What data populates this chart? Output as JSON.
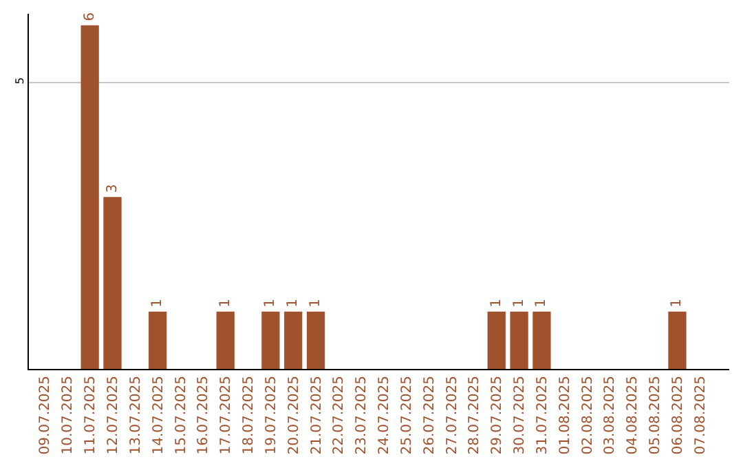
{
  "chart_data": {
    "type": "bar",
    "categories": [
      "09.07.2025",
      "10.07.2025",
      "11.07.2025",
      "12.07.2025",
      "13.07.2025",
      "14.07.2025",
      "15.07.2025",
      "16.07.2025",
      "17.07.2025",
      "18.07.2025",
      "19.07.2025",
      "20.07.2025",
      "21.07.2025",
      "22.07.2025",
      "23.07.2025",
      "24.07.2025",
      "25.07.2025",
      "26.07.2025",
      "27.07.2025",
      "28.07.2025",
      "29.07.2025",
      "30.07.2025",
      "31.07.2025",
      "01.08.2025",
      "02.08.2025",
      "03.08.2025",
      "04.08.2025",
      "05.08.2025",
      "06.08.2025",
      "07.08.2025"
    ],
    "values": [
      0,
      0,
      6,
      3,
      0,
      1,
      0,
      0,
      1,
      0,
      1,
      1,
      1,
      0,
      0,
      0,
      0,
      0,
      0,
      0,
      1,
      1,
      1,
      0,
      0,
      0,
      0,
      0,
      1,
      0
    ],
    "value_labels": [
      null,
      null,
      "6",
      "3",
      null,
      "1",
      null,
      null,
      "1",
      null,
      "1",
      "1",
      "1",
      null,
      null,
      null,
      null,
      null,
      null,
      null,
      "1",
      "1",
      "1",
      null,
      null,
      null,
      null,
      null,
      "1",
      null
    ],
    "color": "#a0522d",
    "ylim": [
      0,
      6.2
    ],
    "yticks": [
      5
    ],
    "grid": "y",
    "legend": false
  }
}
